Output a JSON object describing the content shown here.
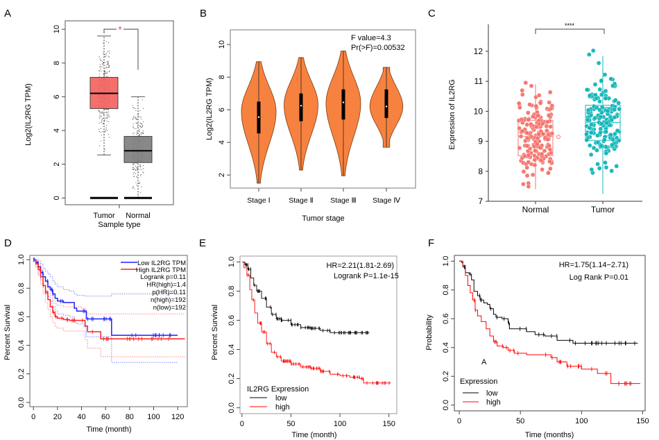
{
  "figure": {
    "panels": [
      "A",
      "B",
      "C",
      "D",
      "E",
      "F"
    ]
  },
  "chart_data": [
    {
      "panel": "A",
      "type": "box",
      "xlabel": "Sample type",
      "ylabel": "Log2(IL2RG TPM)",
      "ylim": [
        -0.4,
        10.5
      ],
      "yticks": [
        0,
        2,
        4,
        6,
        8,
        10
      ],
      "significance": "*",
      "significance_color": "#ff2a2a",
      "groups": [
        {
          "name": "Tumor",
          "color": "#f4635f",
          "q1": 5.3,
          "median": 6.2,
          "q3": 7.15,
          "whisker_low": 2.55,
          "whisker_high": 9.6,
          "zero_bar": true
        },
        {
          "name": "Normal",
          "color": "#7f7f7f",
          "q1": 2.1,
          "median": 2.8,
          "q3": 3.65,
          "whisker_low": 0.0,
          "whisker_high": 6.0,
          "zero_bar": true
        }
      ]
    },
    {
      "panel": "B",
      "type": "violin",
      "xlabel": "Tumor  stage",
      "ylabel": "Log2(IL2RG TPM)",
      "ylim": [
        1.2,
        10.9
      ],
      "yticks": [
        2,
        4,
        6,
        8,
        10
      ],
      "annotation": [
        "F value=4.3",
        "Pr(>F)=0.00532"
      ],
      "fill": "#f7823f",
      "categories": [
        "Stage Ⅰ",
        "Stage Ⅱ",
        "Stage Ⅲ",
        "Stage Ⅳ"
      ],
      "violins": [
        {
          "min": 1.5,
          "max": 8.95,
          "q1": 4.55,
          "median": 5.55,
          "q3": 6.5,
          "peak": 5.9,
          "width": 1.0
        },
        {
          "min": 2.3,
          "max": 9.2,
          "q1": 5.3,
          "median": 6.25,
          "q3": 7.0,
          "peak": 6.3,
          "width": 0.98
        },
        {
          "min": 1.95,
          "max": 9.6,
          "q1": 5.4,
          "median": 6.45,
          "q3": 7.25,
          "peak": 6.4,
          "width": 1.0
        },
        {
          "min": 3.7,
          "max": 8.6,
          "q1": 5.5,
          "median": 6.2,
          "q3": 7.25,
          "peak": 6.2,
          "width": 0.95
        }
      ]
    },
    {
      "panel": "C",
      "type": "box_jitter",
      "ylabel": "Expression of IL2RG",
      "ylim": [
        7,
        12.9
      ],
      "yticks": [
        7,
        8,
        9,
        10,
        11,
        12
      ],
      "significance": "****",
      "groups": [
        {
          "name": "Normal",
          "color": "#f4736b",
          "q1": 8.52,
          "median": 9.17,
          "q3": 9.7,
          "whisker_low": 7.4,
          "whisker_high": 10.9,
          "outliers": [
            9.15
          ],
          "range": [
            7.4,
            10.95
          ]
        },
        {
          "name": "Tumor",
          "color": "#10b5b8",
          "q1": 9.03,
          "median": 9.63,
          "q3": 10.2,
          "whisker_low": 7.25,
          "whisker_high": 11.85,
          "outliers": [],
          "range": [
            7.25,
            12.35
          ]
        }
      ]
    },
    {
      "panel": "D",
      "type": "line",
      "xlabel": "Time (month)",
      "ylabel": "Percent Survival",
      "xlim": [
        -3,
        128
      ],
      "ylim": [
        -0.03,
        1.03
      ],
      "xticks": [
        0,
        20,
        40,
        60,
        80,
        100,
        120
      ],
      "yticks": [
        0.0,
        0.2,
        0.4,
        0.6,
        0.8,
        1.0
      ],
      "legend": [
        "Low IL2RG TPM",
        "High IL2RG TPM"
      ],
      "stats": [
        "Logrank p=0.11",
        "HR(high)=1.4",
        "p(HR)=0.11",
        "n(high)=192",
        "n(low)=192"
      ],
      "series": [
        {
          "name": "Low IL2RG TPM",
          "color": "#1f1fff",
          "x": [
            0,
            2,
            4,
            6,
            8,
            10,
            12,
            14,
            16,
            18,
            20,
            25,
            30,
            34,
            36,
            42,
            44,
            64,
            65,
            120
          ],
          "y": [
            1.0,
            0.98,
            0.95,
            0.91,
            0.88,
            0.85,
            0.81,
            0.79,
            0.76,
            0.73,
            0.71,
            0.7,
            0.7,
            0.66,
            0.64,
            0.64,
            0.585,
            0.585,
            0.47,
            0.47
          ],
          "ci_upper": [
            1.0,
            1.0,
            0.99,
            0.97,
            0.94,
            0.92,
            0.9,
            0.88,
            0.85,
            0.83,
            0.81,
            0.79,
            0.78,
            0.76,
            0.75,
            0.745,
            0.745,
            0.745,
            0.76,
            0.76
          ],
          "ci_lower": [
            1.0,
            0.95,
            0.9,
            0.86,
            0.82,
            0.78,
            0.74,
            0.71,
            0.67,
            0.64,
            0.62,
            0.61,
            0.6,
            0.56,
            0.55,
            0.53,
            0.46,
            0.46,
            0.28,
            0.28
          ]
        },
        {
          "name": "High IL2RG TPM",
          "color": "#ff2020",
          "x": [
            0,
            2,
            4,
            6,
            8,
            10,
            12,
            14,
            16,
            18,
            20,
            25,
            30,
            40,
            43,
            45,
            55,
            56,
            126
          ],
          "y": [
            1.0,
            0.97,
            0.93,
            0.88,
            0.82,
            0.77,
            0.72,
            0.67,
            0.63,
            0.6,
            0.59,
            0.58,
            0.575,
            0.575,
            0.535,
            0.495,
            0.495,
            0.445,
            0.445
          ],
          "ci_upper": [
            1.0,
            0.99,
            0.97,
            0.93,
            0.88,
            0.84,
            0.8,
            0.75,
            0.71,
            0.69,
            0.68,
            0.67,
            0.67,
            0.66,
            0.63,
            0.62,
            0.62,
            0.62,
            0.62
          ],
          "ci_lower": [
            1.0,
            0.95,
            0.89,
            0.83,
            0.76,
            0.7,
            0.65,
            0.6,
            0.56,
            0.53,
            0.52,
            0.5,
            0.5,
            0.5,
            0.44,
            0.38,
            0.38,
            0.32,
            0.32
          ]
        }
      ]
    },
    {
      "panel": "E",
      "type": "line",
      "xlabel": "Time (month)",
      "ylabel": "Percent Survival",
      "xlim": [
        -2,
        158
      ],
      "ylim": [
        -0.04,
        1.04
      ],
      "xticks": [
        0,
        50,
        100,
        150
      ],
      "yticks": [
        0.0,
        0.2,
        0.4,
        0.6,
        0.8,
        1.0
      ],
      "stats": [
        "HR=2.21(1.81-2.69)",
        "Logrank P=1.1e-15"
      ],
      "legend_title": "IL2RG Expression",
      "legend": [
        "low",
        "high"
      ],
      "series": [
        {
          "name": "low",
          "color": "#000000",
          "x": [
            0,
            3,
            6,
            9,
            12,
            15,
            20,
            25,
            30,
            35,
            40,
            50,
            60,
            70,
            80,
            90,
            100,
            130
          ],
          "y": [
            1.0,
            0.98,
            0.95,
            0.89,
            0.84,
            0.8,
            0.75,
            0.69,
            0.64,
            0.61,
            0.6,
            0.57,
            0.55,
            0.545,
            0.53,
            0.515,
            0.515,
            0.515
          ]
        },
        {
          "name": "high",
          "color": "#ff0000",
          "x": [
            0,
            2,
            5,
            8,
            10,
            13,
            16,
            20,
            25,
            30,
            35,
            40,
            50,
            60,
            70,
            80,
            90,
            100,
            110,
            120,
            124,
            152
          ],
          "y": [
            1.0,
            0.96,
            0.91,
            0.81,
            0.74,
            0.65,
            0.58,
            0.52,
            0.44,
            0.38,
            0.35,
            0.32,
            0.3,
            0.28,
            0.27,
            0.25,
            0.23,
            0.22,
            0.21,
            0.2,
            0.17,
            0.17
          ]
        }
      ]
    },
    {
      "panel": "F",
      "type": "line",
      "xlabel": "Time (months)",
      "ylabel": "Probability",
      "xlim": [
        -4,
        152
      ],
      "ylim": [
        -0.04,
        1.04
      ],
      "xticks": [
        0,
        50,
        100,
        150
      ],
      "yticks": [
        0.0,
        0.2,
        0.4,
        0.6,
        0.8,
        1.0
      ],
      "stats": [
        "HR=1.75(1.14−2.71)",
        "Log Rank P=0.01"
      ],
      "annotation": "A",
      "legend_title": "Expression",
      "legend": [
        "low",
        "high"
      ],
      "series": [
        {
          "name": "low",
          "color": "#000000",
          "x": [
            0,
            2,
            3,
            5,
            8,
            10,
            12,
            15,
            17,
            20,
            23,
            25,
            28,
            30,
            35,
            40,
            41,
            50,
            55,
            62,
            70,
            80,
            93,
            146
          ],
          "y": [
            1.0,
            0.99,
            0.96,
            0.92,
            0.91,
            0.87,
            0.79,
            0.76,
            0.73,
            0.71,
            0.7,
            0.67,
            0.63,
            0.61,
            0.6,
            0.57,
            0.53,
            0.53,
            0.51,
            0.49,
            0.48,
            0.45,
            0.43,
            0.43
          ]
        },
        {
          "name": "high",
          "color": "#ff0000",
          "x": [
            0,
            3,
            5,
            7,
            9,
            11,
            13,
            15,
            18,
            22,
            25,
            28,
            31,
            36,
            40,
            45,
            55,
            75,
            80,
            88,
            100,
            113,
            124,
            148
          ],
          "y": [
            1.0,
            0.97,
            0.9,
            0.83,
            0.78,
            0.73,
            0.66,
            0.62,
            0.58,
            0.53,
            0.48,
            0.44,
            0.41,
            0.4,
            0.38,
            0.36,
            0.35,
            0.33,
            0.3,
            0.27,
            0.25,
            0.22,
            0.15,
            0.15
          ]
        }
      ]
    }
  ]
}
